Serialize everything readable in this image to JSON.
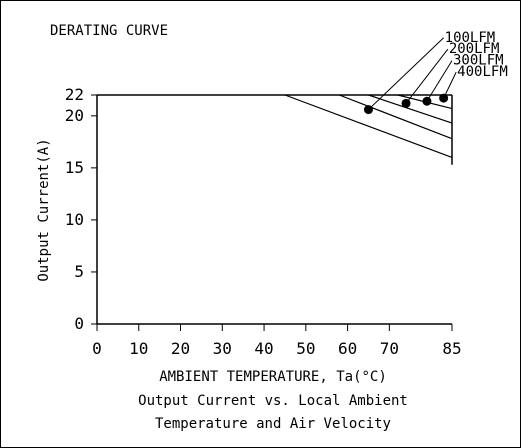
{
  "chart_data": {
    "type": "line",
    "title": "DERATING CURVE",
    "xlabel": "AMBIENT TEMPERATURE, Ta(°C)",
    "ylabel": "Output Current(A)",
    "caption_lines": [
      "Output Current vs. Local Ambient",
      "Temperature and Air Velocity"
    ],
    "xlim": [
      0,
      85
    ],
    "ylim": [
      0,
      22
    ],
    "x_ticks": [
      0,
      10,
      20,
      30,
      40,
      50,
      60,
      70,
      85
    ],
    "y_ticks": [
      0,
      5,
      10,
      15,
      20,
      22
    ],
    "grid": false,
    "series": [
      {
        "name": "100LFM",
        "x": [
          45,
          85
        ],
        "y": [
          22,
          16
        ],
        "knee": [
          65,
          20.6
        ],
        "label_line_end": [
          83,
          27.5
        ]
      },
      {
        "name": "200LFM",
        "x": [
          58,
          85
        ],
        "y": [
          22,
          17.8
        ],
        "knee": [
          74,
          21.2
        ],
        "label_line_end": [
          84,
          26.4
        ]
      },
      {
        "name": "300LFM",
        "x": [
          65,
          85
        ],
        "y": [
          22,
          19.3
        ],
        "knee": [
          79,
          21.4
        ],
        "label_line_end": [
          85,
          25.3
        ]
      },
      {
        "name": "400LFM",
        "x": [
          72,
          85
        ],
        "y": [
          22,
          20.7
        ],
        "knee": [
          83,
          21.7
        ],
        "label_line_end": [
          86,
          24.2
        ]
      }
    ],
    "colors": {
      "line": "#000000",
      "background": "#ffffff"
    }
  }
}
